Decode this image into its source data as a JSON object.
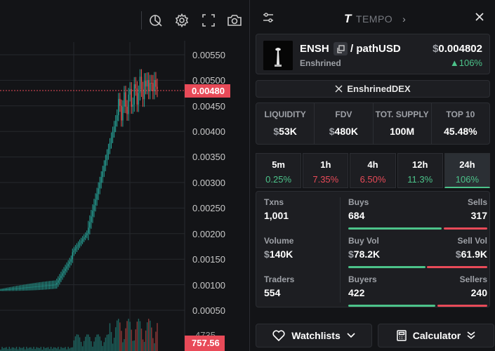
{
  "chart": {
    "price_axis": [
      "0.00550",
      "0.00500",
      "0.00450",
      "0.00400",
      "0.00350",
      "0.00300",
      "0.00250",
      "0.00200",
      "0.00150",
      "0.00100",
      "0.00050"
    ],
    "current_price": "0.00480",
    "volume_axis_label": "4735",
    "volume_value": "757.56",
    "up_color": "#26a69a",
    "down_color": "#ef5350",
    "toolbar_icons": [
      "indicator-icon",
      "gear-icon",
      "fullscreen-icon",
      "camera-icon"
    ]
  },
  "header": {
    "brand_logo": "T",
    "brand_name": "TEMPO",
    "chevron": "›"
  },
  "token": {
    "symbol": "ENSH",
    "pair": "/ pathUSD",
    "name": "Enshrined",
    "price_currency": "$",
    "price": "0.004802",
    "change": "▲106%"
  },
  "social": {
    "x_label": "EnshrinedDEX"
  },
  "stats": [
    {
      "label": "LIQUIDITY",
      "currency": "$",
      "value": "53K"
    },
    {
      "label": "FDV",
      "currency": "$",
      "value": "480K"
    },
    {
      "label": "TOT. SUPPLY",
      "currency": "",
      "value": "100M"
    },
    {
      "label": "TOP 10",
      "currency": "",
      "value": "45.48%"
    }
  ],
  "timeframes": [
    {
      "label": "5m",
      "value": "0.25%",
      "dir": "pos"
    },
    {
      "label": "1h",
      "value": "7.35%",
      "dir": "neg"
    },
    {
      "label": "4h",
      "value": "6.50%",
      "dir": "neg"
    },
    {
      "label": "12h",
      "value": "11.3%",
      "dir": "pos"
    },
    {
      "label": "24h",
      "value": "106%",
      "dir": "pos"
    }
  ],
  "txns": {
    "txns_label": "Txns",
    "txns_value": "1,001",
    "volume_label": "Volume",
    "volume_currency": "$",
    "volume_value": "140K",
    "traders_label": "Traders",
    "traders_value": "554",
    "buys_label": "Buys",
    "buys_value": "684",
    "sells_label": "Sells",
    "sells_value": "317",
    "buyvol_label": "Buy Vol",
    "buyvol_currency": "$",
    "buyvol_value": "78.2K",
    "sellvol_label": "Sell Vol",
    "sellvol_currency": "$",
    "sellvol_value": "61.9K",
    "buyers_label": "Buyers",
    "buyers_value": "422",
    "sellers_label": "Sellers",
    "sellers_value": "240"
  },
  "buttons": {
    "watchlists": "Watchlists",
    "calculator": "Calculator"
  }
}
